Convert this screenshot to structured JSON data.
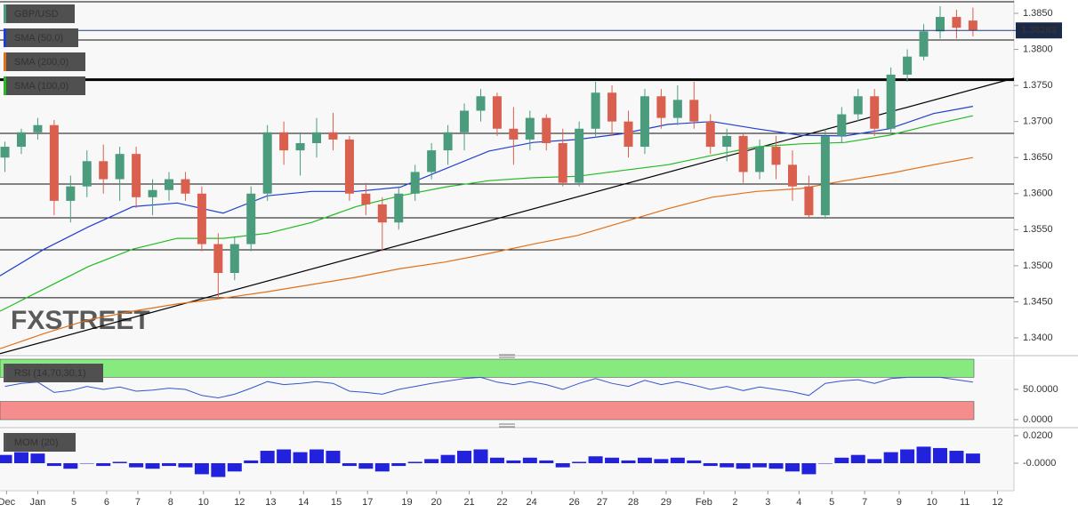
{
  "chart_data": [
    {
      "type": "candlestick",
      "xlim": [
        -0.3,
        61.5
      ],
      "ylim": [
        1.33778,
        1.38685
      ],
      "yticks": [
        {
          "value": 1.385,
          "label": "1.3850"
        },
        {
          "value": 1.38,
          "label": "1.3800"
        },
        {
          "value": 1.375,
          "label": "1.3750"
        },
        {
          "value": 1.37,
          "label": "1.3700"
        },
        {
          "value": 1.365,
          "label": "1.3650"
        },
        {
          "value": 1.36,
          "label": "1.3600"
        },
        {
          "value": 1.355,
          "label": "1.3550"
        },
        {
          "value": 1.35,
          "label": "1.3500"
        },
        {
          "value": 1.345,
          "label": "1.3450"
        },
        {
          "value": 1.34,
          "label": "1.3400"
        }
      ],
      "watermark": "FXSTREET",
      "candles": {
        "name": "GBP/USD",
        "color": "#4a9c7d",
        "up_color": "#4a9c7d",
        "down_color": "#d9604f",
        "x": [
          0,
          1,
          2,
          3,
          4,
          5,
          6,
          7,
          8,
          9,
          10,
          11,
          12,
          13,
          14,
          15,
          16,
          17,
          18,
          19,
          20,
          21,
          22,
          23,
          24,
          25,
          26,
          27,
          28,
          29,
          30,
          31,
          32,
          33,
          34,
          35,
          36,
          37,
          38,
          39,
          40,
          41,
          42,
          43,
          44,
          45,
          46,
          47,
          48,
          49,
          50,
          51,
          52,
          53,
          54,
          55,
          56,
          57,
          58,
          59
        ],
        "open": [
          1.365,
          1.3665,
          1.3685,
          1.3695,
          1.359,
          1.361,
          1.3645,
          1.362,
          1.3655,
          1.3595,
          1.3605,
          1.362,
          1.36,
          1.353,
          1.349,
          1.353,
          1.36,
          1.3685,
          1.366,
          1.367,
          1.3685,
          1.3675,
          1.36,
          1.3585,
          1.356,
          1.36,
          1.363,
          1.366,
          1.3685,
          1.3715,
          1.3735,
          1.369,
          1.3675,
          1.3705,
          1.367,
          1.3615,
          1.369,
          1.374,
          1.37,
          1.3665,
          1.3735,
          1.3705,
          1.373,
          1.37,
          1.3665,
          1.368,
          1.363,
          1.3665,
          1.364,
          1.361,
          1.357,
          1.368,
          1.371,
          1.3735,
          1.369,
          1.3765,
          1.379,
          1.3825,
          1.3845,
          1.384
        ],
        "high": [
          1.3672,
          1.369,
          1.3705,
          1.3702,
          1.3625,
          1.366,
          1.3668,
          1.3665,
          1.3665,
          1.362,
          1.363,
          1.363,
          1.361,
          1.3545,
          1.354,
          1.361,
          1.3695,
          1.37,
          1.3685,
          1.3705,
          1.3712,
          1.368,
          1.3615,
          1.3595,
          1.361,
          1.364,
          1.367,
          1.3695,
          1.3725,
          1.3745,
          1.374,
          1.372,
          1.3715,
          1.371,
          1.369,
          1.37,
          1.3755,
          1.375,
          1.3715,
          1.3745,
          1.3745,
          1.375,
          1.3755,
          1.371,
          1.369,
          1.3685,
          1.3675,
          1.368,
          1.366,
          1.3625,
          1.369,
          1.372,
          1.3745,
          1.3745,
          1.3775,
          1.38,
          1.3835,
          1.386,
          1.3855,
          1.3858
        ],
        "low": [
          1.363,
          1.3655,
          1.3675,
          1.357,
          1.356,
          1.3595,
          1.36,
          1.359,
          1.358,
          1.357,
          1.359,
          1.359,
          1.352,
          1.3455,
          1.348,
          1.352,
          1.359,
          1.364,
          1.3625,
          1.365,
          1.366,
          1.359,
          1.357,
          1.352,
          1.355,
          1.359,
          1.362,
          1.364,
          1.366,
          1.37,
          1.368,
          1.364,
          1.366,
          1.366,
          1.361,
          1.361,
          1.368,
          1.368,
          1.365,
          1.3655,
          1.369,
          1.3695,
          1.369,
          1.3655,
          1.3645,
          1.3615,
          1.362,
          1.362,
          1.359,
          1.3565,
          1.3565,
          1.367,
          1.37,
          1.368,
          1.3685,
          1.3755,
          1.3785,
          1.3815,
          1.3815,
          1.3818
        ],
        "close": [
          1.3665,
          1.3685,
          1.3695,
          1.359,
          1.361,
          1.3645,
          1.362,
          1.3655,
          1.3595,
          1.3605,
          1.362,
          1.36,
          1.353,
          1.349,
          1.353,
          1.36,
          1.3685,
          1.366,
          1.367,
          1.3685,
          1.3675,
          1.36,
          1.3585,
          1.356,
          1.36,
          1.363,
          1.366,
          1.3685,
          1.3715,
          1.3735,
          1.369,
          1.3675,
          1.3705,
          1.367,
          1.3615,
          1.369,
          1.374,
          1.37,
          1.3665,
          1.3735,
          1.3705,
          1.373,
          1.37,
          1.3665,
          1.368,
          1.363,
          1.3665,
          1.364,
          1.361,
          1.357,
          1.368,
          1.371,
          1.3735,
          1.369,
          1.3765,
          1.379,
          1.3825,
          1.3845,
          1.383,
          1.3826
        ]
      },
      "last_price": 1.38263,
      "series": [
        {
          "name": "SMA (50,0)",
          "color": "#1f3fd0",
          "x": [
            -0.3,
            2.4,
            5.1,
            7.8,
            10.5,
            13.3,
            16,
            18.7,
            21.4,
            24.1,
            26.8,
            29.5,
            32.2,
            34.9,
            37.6,
            40.4,
            43.1,
            45.8,
            48.5,
            51.2,
            53.9,
            56.6,
            59
          ],
          "values": [
            1.3486,
            1.3523,
            1.3554,
            1.3582,
            1.3587,
            1.3573,
            1.3597,
            1.3603,
            1.3603,
            1.3609,
            1.3634,
            1.3659,
            1.3671,
            1.3675,
            1.3683,
            1.3696,
            1.37,
            1.369,
            1.3681,
            1.368,
            1.369,
            1.3711,
            1.3721
          ]
        },
        {
          "name": "SMA (200,0)",
          "color": "#e0701a",
          "x": [
            -0.3,
            2.4,
            5.1,
            7.8,
            10.5,
            13.3,
            16,
            18.7,
            21.4,
            24.1,
            26.8,
            29.5,
            32.2,
            34.9,
            37.6,
            40.4,
            43.1,
            45.8,
            48.5,
            51.2,
            53.9,
            56.6,
            59
          ],
          "values": [
            1.3385,
            1.3406,
            1.3425,
            1.3437,
            1.3447,
            1.3455,
            1.3464,
            1.3474,
            1.3484,
            1.3496,
            1.3505,
            1.3517,
            1.353,
            1.3542,
            1.356,
            1.3579,
            1.3595,
            1.3603,
            1.3607,
            1.3618,
            1.3628,
            1.364,
            1.365
          ]
        },
        {
          "name": "SMA (100,0)",
          "color": "#22bb22",
          "x": [
            -0.3,
            2.4,
            5.1,
            7.8,
            10.5,
            13.3,
            16,
            18.7,
            21.4,
            24.1,
            26.8,
            29.5,
            32.2,
            34.9,
            37.6,
            40.4,
            43.1,
            45.8,
            48.5,
            51.2,
            53.9,
            56.6,
            59
          ],
          "values": [
            1.3437,
            1.3468,
            1.3499,
            1.3523,
            1.3538,
            1.3538,
            1.3545,
            1.356,
            1.3582,
            1.3597,
            1.3609,
            1.3618,
            1.3622,
            1.3624,
            1.3632,
            1.364,
            1.3653,
            1.3665,
            1.3669,
            1.3671,
            1.3681,
            1.3696,
            1.3708
          ]
        }
      ],
      "levels": [
        1.3866,
        1.3813,
        1.36835,
        1.36133,
        1.35665,
        1.3522,
        1.34557
      ],
      "key_level": 1.3758,
      "trendline": {
        "x": [
          -0.3,
          61.5
        ],
        "y": [
          1.3378,
          1.376
        ]
      }
    },
    {
      "type": "line",
      "name": "RSI (14,70,30,1)",
      "color": "#3355cc",
      "xlim": [
        -0.3,
        61.5
      ],
      "ylim": [
        -11.8,
        100
      ],
      "yticks": [
        {
          "value": 50,
          "label": "50.0000"
        },
        {
          "value": 0,
          "label": "0.0000"
        }
      ],
      "bands": [
        {
          "range": [
            70,
            100
          ],
          "color": "#86ea7e"
        },
        {
          "range": [
            0,
            30
          ],
          "color": "#f58d8d"
        }
      ],
      "x": [
        0,
        1,
        2,
        3,
        4,
        5,
        6,
        7,
        8,
        9,
        10,
        11,
        12,
        13,
        14,
        15,
        16,
        17,
        18,
        19,
        20,
        21,
        22,
        23,
        24,
        25,
        26,
        27,
        28,
        29,
        30,
        31,
        32,
        33,
        34,
        35,
        36,
        37,
        38,
        39,
        40,
        41,
        42,
        43,
        44,
        45,
        46,
        47,
        48,
        49,
        50,
        51,
        52,
        53,
        54,
        55,
        56,
        57,
        58,
        59
      ],
      "values": [
        55,
        60,
        62,
        45,
        48,
        55,
        50,
        54,
        47,
        49,
        52,
        50,
        40,
        36,
        42,
        52,
        63,
        58,
        60,
        63,
        60,
        47,
        45,
        42,
        50,
        55,
        60,
        64,
        68,
        70,
        62,
        58,
        63,
        58,
        50,
        60,
        68,
        60,
        55,
        65,
        58,
        63,
        57,
        50,
        55,
        48,
        54,
        50,
        46,
        40,
        60,
        64,
        66,
        60,
        68,
        70,
        70,
        70,
        66,
        62
      ]
    },
    {
      "type": "bar",
      "name": "MOM (20)",
      "color": "#2222dd",
      "xlim": [
        -0.3,
        61.5
      ],
      "ylim": [
        -0.02,
        0.0245
      ],
      "yticks": [
        {
          "value": 0.02,
          "label": "0.0200"
        },
        {
          "value": 0,
          "label": "-0.0000"
        }
      ],
      "xticks": [
        {
          "value": 0.1,
          "label": "Dec"
        },
        {
          "value": 2,
          "label": "Jan"
        },
        {
          "value": 4.2,
          "label": "5"
        },
        {
          "value": 6.2,
          "label": "6"
        },
        {
          "value": 8.1,
          "label": "7"
        },
        {
          "value": 10.1,
          "label": "8"
        },
        {
          "value": 12.1,
          "label": "10"
        },
        {
          "value": 14.3,
          "label": "12"
        },
        {
          "value": 16.2,
          "label": "13"
        },
        {
          "value": 18.2,
          "label": "14"
        },
        {
          "value": 20.2,
          "label": "15"
        },
        {
          "value": 22.1,
          "label": "17"
        },
        {
          "value": 24.5,
          "label": "19"
        },
        {
          "value": 26.3,
          "label": "20"
        },
        {
          "value": 28.3,
          "label": "21"
        },
        {
          "value": 30.3,
          "label": "22"
        },
        {
          "value": 32.1,
          "label": "24"
        },
        {
          "value": 34.7,
          "label": "26"
        },
        {
          "value": 36.4,
          "label": "27"
        },
        {
          "value": 38.3,
          "label": "28"
        },
        {
          "value": 40.3,
          "label": "29"
        },
        {
          "value": 42.6,
          "label": "Feb"
        },
        {
          "value": 44.5,
          "label": "2"
        },
        {
          "value": 46.5,
          "label": "3"
        },
        {
          "value": 48.4,
          "label": "4"
        },
        {
          "value": 50.4,
          "label": "5"
        },
        {
          "value": 52.4,
          "label": "7"
        },
        {
          "value": 54.5,
          "label": "9"
        },
        {
          "value": 56.5,
          "label": "10"
        },
        {
          "value": 58.5,
          "label": "11"
        },
        {
          "value": 60.5,
          "label": "12"
        }
      ],
      "x": [
        0,
        1,
        2,
        3,
        4,
        5,
        6,
        7,
        8,
        9,
        10,
        11,
        12,
        13,
        14,
        15,
        16,
        17,
        18,
        19,
        20,
        21,
        22,
        23,
        24,
        25,
        26,
        27,
        28,
        29,
        30,
        31,
        32,
        33,
        34,
        35,
        36,
        37,
        38,
        39,
        40,
        41,
        42,
        43,
        44,
        45,
        46,
        47,
        48,
        49,
        50,
        51,
        52,
        53,
        54,
        55,
        56,
        57,
        58,
        59
      ],
      "values": [
        0.006,
        0.008,
        0.007,
        -0.002,
        -0.004,
        0.0,
        -0.002,
        0.001,
        -0.003,
        -0.004,
        -0.002,
        -0.003,
        -0.008,
        -0.01,
        -0.006,
        0.002,
        0.009,
        0.01,
        0.008,
        0.01,
        0.009,
        -0.002,
        -0.004,
        -0.006,
        -0.002,
        0.001,
        0.003,
        0.006,
        0.009,
        0.01,
        0.004,
        0.002,
        0.004,
        0.002,
        -0.003,
        0.001,
        0.005,
        0.004,
        0.002,
        0.004,
        0.003,
        0.004,
        0.002,
        -0.002,
        -0.003,
        -0.004,
        -0.003,
        -0.004,
        -0.006,
        -0.008,
        0.0,
        0.004,
        0.006,
        0.003,
        0.008,
        0.01,
        0.012,
        0.011,
        0.009,
        0.007
      ]
    }
  ]
}
